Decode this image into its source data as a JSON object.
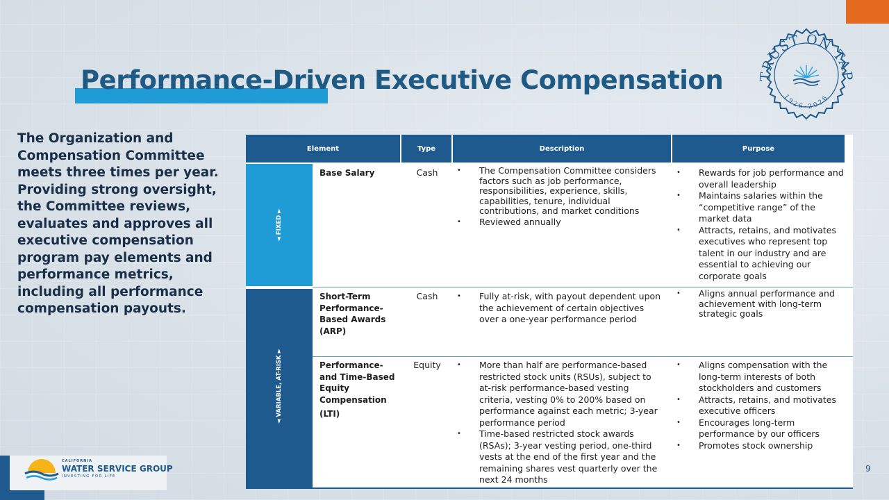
{
  "slide": {
    "title": "Performance-Driven Executive Compensation",
    "intro": "The Organization and Compensation Committee meets three times per year. Providing strong oversight, the Committee reviews, evaluates and approves all executive compensation program pay elements and performance metrics, including all performance compensation payouts.",
    "page_number": "9"
  },
  "seal": {
    "text": "TRUST ON TAP",
    "years": "1926-2026"
  },
  "table": {
    "headers": [
      "Element",
      "Type",
      "Description",
      "Purpose"
    ],
    "groups": [
      "◄ FIXED ►",
      "◄ VARIABLE, AT-RISK ►"
    ],
    "rows": [
      {
        "element": "Base Salary",
        "type": "Cash",
        "description": [
          "The Compensation Committee considers factors such as job performance, responsibilities, experience, skills, capabilities, tenure, individual contributions, and market conditions",
          "Reviewed annually"
        ],
        "purpose": [
          "Rewards for job performance and overall leadership",
          "Maintains salaries within the “competitive range” of the market data",
          "Attracts, retains, and motivates executives who represent top talent in our industry and are essential to achieving our corporate goals"
        ]
      },
      {
        "element": "Short-Term Performance-Based Awards (ARP)",
        "type": "Cash",
        "description": [
          "Fully at-risk, with payout dependent upon the achievement of certain objectives over a one-year performance period"
        ],
        "purpose": [
          "Aligns annual performance and achievement with long-term strategic goals"
        ]
      },
      {
        "element": "Performance- and Time-Based Equity Compensation",
        "element_sub": "(LTI)",
        "type": "Equity",
        "description": [
          "More than half are performance-based restricted stock units (RSUs), subject to at-risk performance-based vesting criteria, vesting 0% to 200% based on performance against each metric; 3-year performance period",
          "Time-based restricted stock awards (RSAs); 3-year vesting period, one-third vests at the end of the first year and the remaining shares vest quarterly over the next 24 months"
        ],
        "purpose": [
          "Aligns compensation with the long-term interests of both stockholders and customers",
          "Attracts, retains, and motivates executive officers",
          "Encourages long-term performance by our officers",
          "Promotes stock ownership"
        ]
      }
    ]
  },
  "logo": {
    "small": "CALIFORNIA",
    "name": "WATER SERVICE GROUP",
    "tagline": "INVESTING FOR LIFE"
  },
  "colors": {
    "navy": "#1f5a8f",
    "sky": "#1f9bd6",
    "orange": "#e36a1f",
    "title": "#1f5a85"
  }
}
